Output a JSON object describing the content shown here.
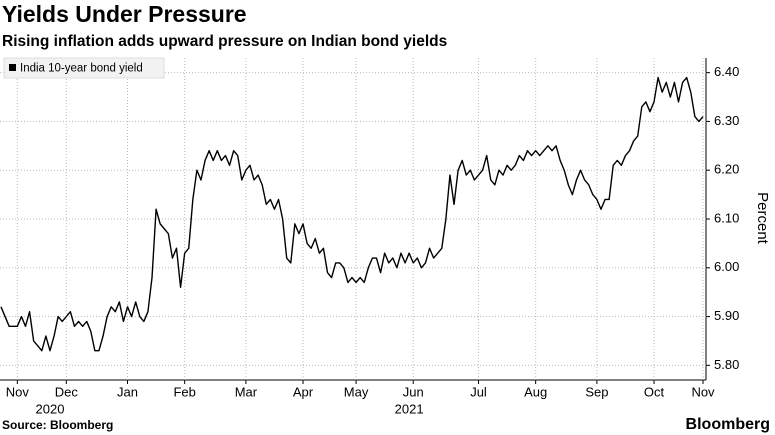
{
  "chart_data": {
    "type": "line",
    "title": "Yields Under Pressure",
    "subtitle": "Rising inflation adds upward pressure on Indian bond yields",
    "y_axis_label": "Percent",
    "source": "Source: Bloomberg",
    "brand": "Bloomberg",
    "legend_position": "upper-left",
    "grid": true,
    "categories": [
      null,
      null,
      null,
      null,
      "Nov",
      null,
      null,
      null,
      null,
      null,
      null,
      null,
      null,
      null,
      null,
      null,
      "Dec",
      null,
      null,
      null,
      null,
      null,
      null,
      null,
      null,
      null,
      null,
      null,
      null,
      null,
      null,
      "Jan",
      null,
      null,
      null,
      null,
      null,
      null,
      null,
      null,
      null,
      null,
      null,
      null,
      null,
      "Feb",
      null,
      null,
      null,
      null,
      null,
      null,
      null,
      null,
      null,
      null,
      null,
      null,
      null,
      null,
      "Mar",
      null,
      null,
      null,
      null,
      null,
      null,
      null,
      null,
      null,
      null,
      null,
      null,
      null,
      "Apr",
      null,
      null,
      null,
      null,
      null,
      null,
      null,
      null,
      null,
      null,
      null,
      null,
      "May",
      null,
      null,
      null,
      null,
      null,
      null,
      null,
      null,
      null,
      null,
      null,
      null,
      null,
      "Jun",
      null,
      null,
      null,
      null,
      null,
      null,
      null,
      null,
      null,
      null,
      null,
      null,
      null,
      null,
      null,
      "Jul",
      null,
      null,
      null,
      null,
      null,
      null,
      null,
      null,
      null,
      null,
      null,
      null,
      null,
      "Aug",
      null,
      null,
      null,
      null,
      null,
      null,
      null,
      null,
      null,
      null,
      null,
      null,
      null,
      null,
      "Sep",
      null,
      null,
      null,
      null,
      null,
      null,
      null,
      null,
      null,
      null,
      null,
      null,
      null,
      "Oct",
      null,
      null,
      null,
      null,
      null,
      null,
      null,
      null,
      null,
      null,
      null,
      "Nov"
    ],
    "year_labels": [
      {
        "text": "2020",
        "category": 12
      },
      {
        "text": "2021",
        "category": 100
      }
    ],
    "series": [
      {
        "name": "India 10-year bond yield",
        "color": "#000000",
        "values": [
          5.92,
          5.9,
          5.88,
          5.88,
          5.88,
          5.9,
          5.88,
          5.91,
          5.85,
          5.84,
          5.83,
          5.86,
          5.83,
          5.86,
          5.9,
          5.89,
          5.9,
          5.91,
          5.88,
          5.89,
          5.88,
          5.89,
          5.87,
          5.83,
          5.83,
          5.86,
          5.9,
          5.92,
          5.91,
          5.93,
          5.89,
          5.92,
          5.9,
          5.93,
          5.9,
          5.89,
          5.91,
          5.98,
          6.12,
          6.09,
          6.08,
          6.07,
          6.02,
          6.04,
          5.96,
          6.03,
          6.04,
          6.14,
          6.2,
          6.18,
          6.22,
          6.24,
          6.22,
          6.24,
          6.22,
          6.23,
          6.21,
          6.24,
          6.23,
          6.18,
          6.2,
          6.21,
          6.18,
          6.19,
          6.17,
          6.13,
          6.14,
          6.12,
          6.14,
          6.1,
          6.02,
          6.01,
          6.09,
          6.07,
          6.09,
          6.05,
          6.04,
          6.06,
          6.03,
          6.04,
          5.99,
          5.98,
          6.01,
          6.01,
          6.0,
          5.97,
          5.98,
          5.97,
          5.98,
          5.97,
          6.0,
          6.02,
          6.02,
          5.99,
          6.03,
          6.01,
          6.02,
          6.0,
          6.03,
          6.01,
          6.03,
          6.01,
          6.02,
          6.0,
          6.01,
          6.04,
          6.02,
          6.03,
          6.04,
          6.1,
          6.19,
          6.13,
          6.2,
          6.22,
          6.19,
          6.2,
          6.18,
          6.19,
          6.2,
          6.23,
          6.18,
          6.17,
          6.2,
          6.19,
          6.21,
          6.2,
          6.21,
          6.23,
          6.22,
          6.24,
          6.23,
          6.24,
          6.23,
          6.24,
          6.25,
          6.24,
          6.25,
          6.22,
          6.2,
          6.17,
          6.15,
          6.18,
          6.2,
          6.18,
          6.17,
          6.15,
          6.14,
          6.12,
          6.14,
          6.14,
          6.21,
          6.22,
          6.21,
          6.23,
          6.24,
          6.26,
          6.27,
          6.33,
          6.34,
          6.32,
          6.34,
          6.39,
          6.36,
          6.38,
          6.35,
          6.38,
          6.34,
          6.38,
          6.39,
          6.36,
          6.31,
          6.3,
          6.31
        ]
      }
    ],
    "ylim": [
      5.77,
      6.43
    ],
    "yticks": [
      {
        "value": 5.8,
        "label": "5.80"
      },
      {
        "value": 5.9,
        "label": "5.90"
      },
      {
        "value": 6.0,
        "label": "6.00"
      },
      {
        "value": 6.1,
        "label": "6.10"
      },
      {
        "value": 6.2,
        "label": "6.20"
      },
      {
        "value": 6.3,
        "label": "6.30"
      },
      {
        "value": 6.4,
        "label": "6.40"
      }
    ]
  }
}
